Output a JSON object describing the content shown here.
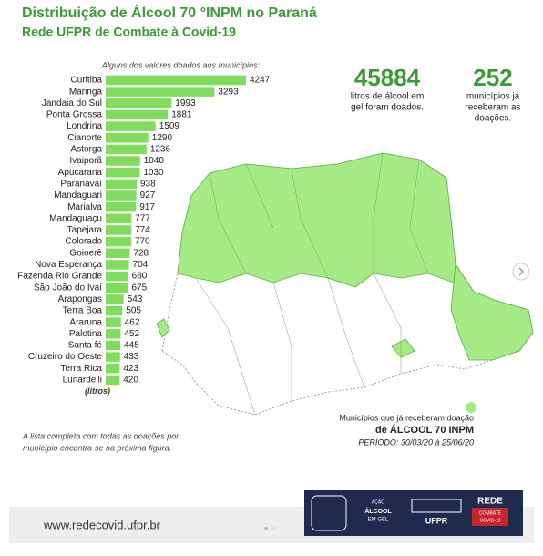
{
  "title": "Distribuição de Álcool 70 °INPM no Paraná",
  "subtitle": "Rede UFPR de Combate à Covid-19",
  "chart_data": {
    "type": "bar",
    "orientation": "horizontal",
    "subtitle": "Alguns dos valores doados aos municípios:",
    "unit_label": "(litros)",
    "color": "#7fdc5c",
    "categories": [
      "Curitiba",
      "Maringá",
      "Jandaia do Sul",
      "Ponta Grossa",
      "Londrina",
      "Cianorte",
      "Astorga",
      "Ivaiporã",
      "Apucarana",
      "Paranavaí",
      "Mandaguari",
      "Marialva",
      "Mandaguaçu",
      "Tapejara",
      "Colorado",
      "Goioerê",
      "Nova Esperança",
      "Fazenda Rio Grande",
      "São João do Ivaí",
      "Arapongas",
      "Terra Boa",
      "Araruna",
      "Palotina",
      "Santa fé",
      "Cruzeiro do Oeste",
      "Terra Rica",
      "Lunardelli"
    ],
    "values": [
      4247,
      3293,
      1993,
      1881,
      1509,
      1290,
      1236,
      1040,
      1030,
      938,
      927,
      917,
      777,
      774,
      770,
      728,
      704,
      680,
      675,
      543,
      505,
      462,
      452,
      445,
      433,
      423,
      420
    ]
  },
  "note": [
    "A lista completa com todas as doações por",
    "município encontra-se na próxima figura."
  ],
  "stats": [
    {
      "value": 45884,
      "lines": [
        "litros de álcool em",
        "gel foram doados."
      ]
    },
    {
      "value": 252,
      "lines": [
        "municípios já",
        "receberam as",
        "doações."
      ]
    }
  ],
  "map_legend": {
    "line1": "Municípios que já receberam doação",
    "line2": "de ÁLCOOL 70 INPM",
    "period": "PERÍODO: 30/03/20 à 25/06/20"
  },
  "footer": {
    "url": "www.redecovid.ufpr.br",
    "action": [
      "AÇÃO",
      "ÁLCOOL",
      "EM GEL"
    ],
    "ufpr": "UFPR",
    "rede": "REDE",
    "combate": [
      "COMBATE",
      "COVID-19"
    ]
  }
}
